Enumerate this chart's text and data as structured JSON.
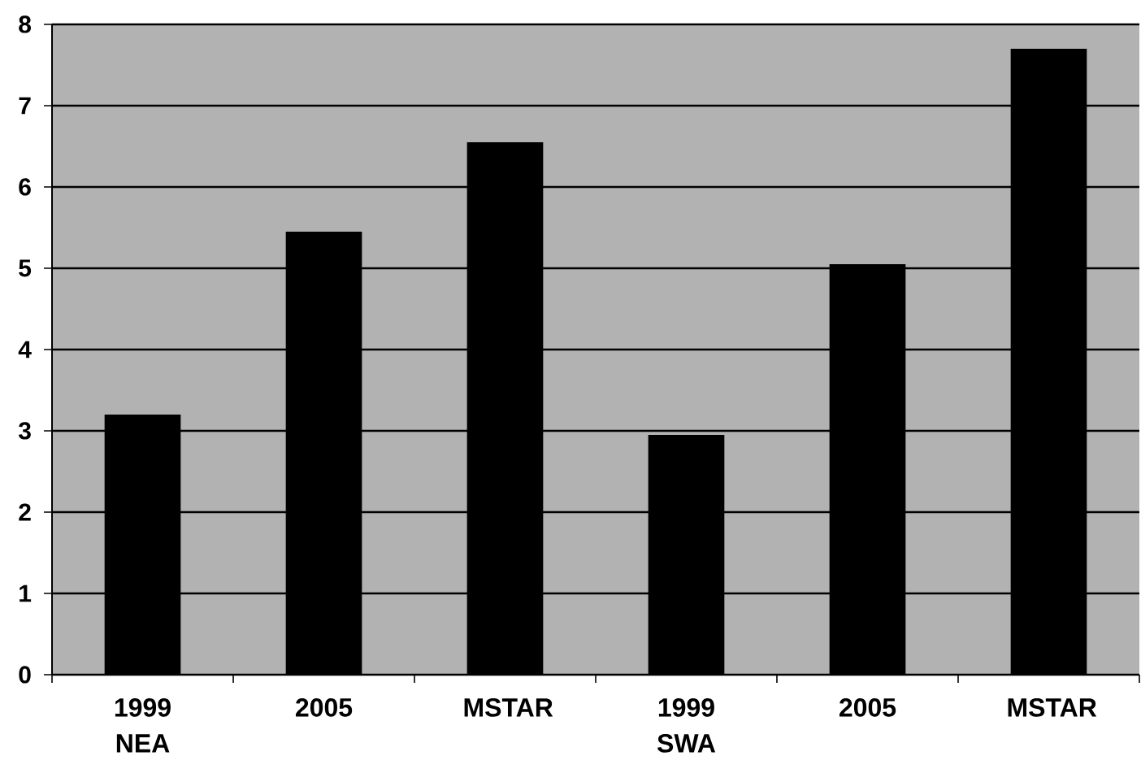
{
  "chart_data": {
    "type": "bar",
    "categories": [
      "1999 NEA",
      "2005",
      "MSTAR",
      "1999 SWA",
      "2005",
      "MSTAR"
    ],
    "values": [
      3.2,
      5.45,
      6.55,
      2.95,
      5.05,
      7.7
    ],
    "color": "#000000",
    "ylim": [
      0,
      8
    ],
    "yticks": [
      0,
      1,
      2,
      3,
      4,
      5,
      6,
      7,
      8
    ],
    "grid": "y"
  }
}
